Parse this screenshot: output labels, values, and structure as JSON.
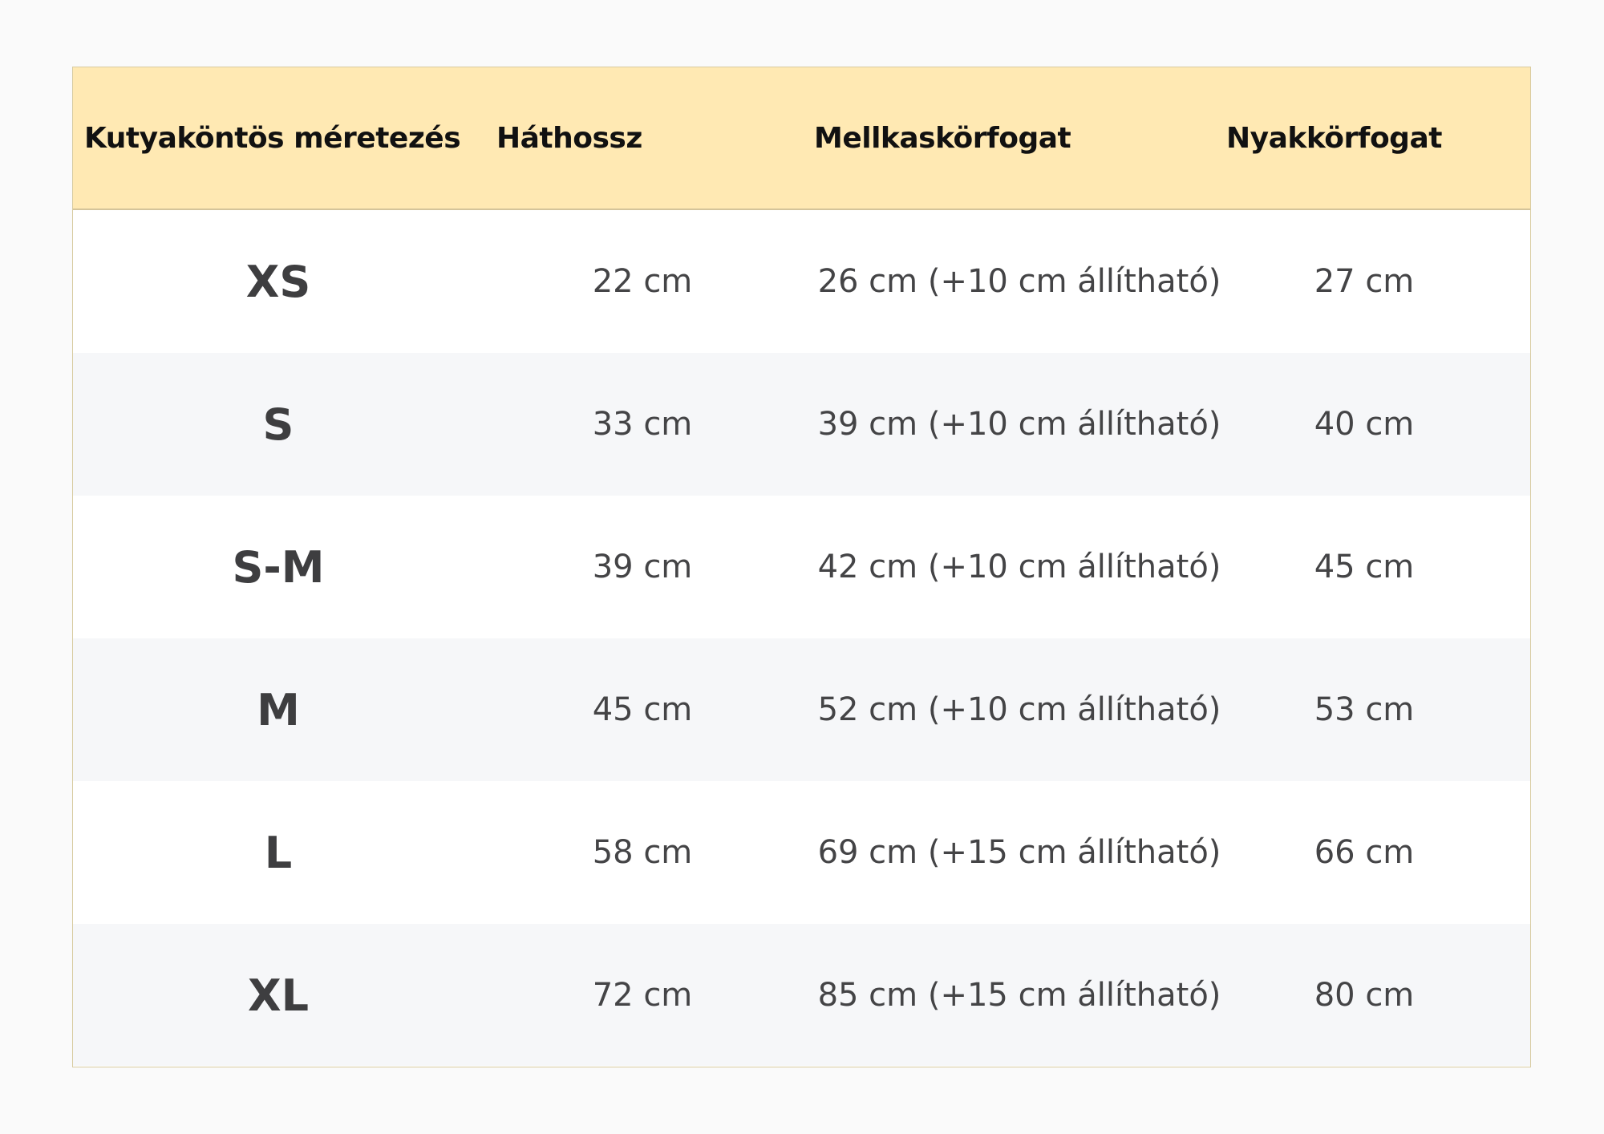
{
  "table": {
    "headers": [
      "Kutyaköntös méretezés",
      "Háthossz",
      "Mellkaskörfogat",
      "Nyakkörfogat"
    ],
    "rows": [
      {
        "size": "XS",
        "back": "22 cm",
        "chest": "26 cm (+10 cm állítható)",
        "neck": "27 cm"
      },
      {
        "size": "S",
        "back": "33 cm",
        "chest": "39 cm (+10 cm állítható)",
        "neck": "40 cm"
      },
      {
        "size": "S-M",
        "back": "39 cm",
        "chest": "42 cm (+10 cm állítható)",
        "neck": "45 cm"
      },
      {
        "size": "M",
        "back": "45 cm",
        "chest": "52 cm (+10 cm állítható)",
        "neck": "53 cm"
      },
      {
        "size": "L",
        "back": "58 cm",
        "chest": "69 cm (+15 cm állítható)",
        "neck": "66 cm"
      },
      {
        "size": "XL",
        "back": "72 cm",
        "chest": "85 cm (+15 cm állítható)",
        "neck": "80 cm"
      }
    ]
  },
  "colors": {
    "header_background": "#ffe9b3",
    "border": "#d8cba0",
    "row_alt_background": "#f6f7f9",
    "text": "#444446"
  }
}
